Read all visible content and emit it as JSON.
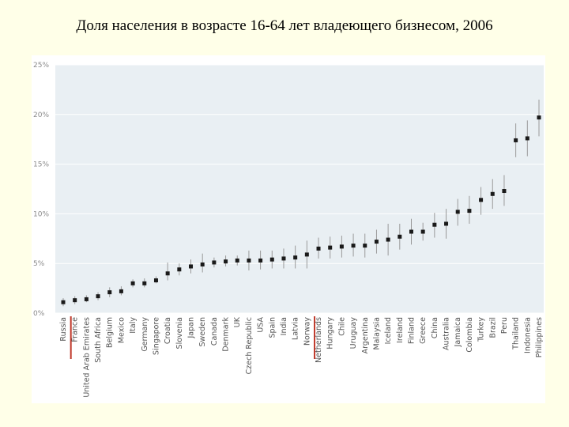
{
  "title": "Доля населения в возрасте 16-64 лет владеющего бизнесом, 2006",
  "colors": {
    "plot_bg": "#e9eff3",
    "grid": "#ffffff",
    "marker": "#1a1a1a",
    "error_bar": "#999999",
    "highlight": "#c0392b"
  },
  "chart_data": {
    "type": "scatter",
    "yticks": [
      "0%",
      "5%",
      "10%",
      "15%",
      "20%",
      "25%"
    ],
    "ylim": [
      0,
      25
    ],
    "grid": true,
    "highlight_categories": [
      "France",
      "Netherlands"
    ],
    "categories": [
      "Russia",
      "France",
      "United Arab Emirates",
      "South Africa",
      "Belgium",
      "Mexico",
      "Italy",
      "Germany",
      "Singapore",
      "Croatia",
      "Slovenia",
      "Japan",
      "Sweden",
      "Canada",
      "Denmark",
      "UK",
      "Czech Republic",
      "USA",
      "Spain",
      "India",
      "Latvia",
      "Norway",
      "Netherlands",
      "Hungary",
      "Chile",
      "Uruguay",
      "Argentina",
      "Malaysia",
      "Iceland",
      "Ireland",
      "Finland",
      "Greece",
      "China",
      "Australia",
      "Jamaica",
      "Colombia",
      "Turkey",
      "Brazil",
      "Peru",
      "Thailand",
      "Indonesia",
      "Philippines"
    ],
    "values": [
      1.1,
      1.3,
      1.4,
      1.7,
      2.1,
      2.2,
      3.0,
      3.0,
      3.3,
      4.0,
      4.4,
      4.7,
      4.9,
      5.1,
      5.2,
      5.3,
      5.3,
      5.3,
      5.4,
      5.5,
      5.6,
      5.9,
      6.5,
      6.6,
      6.7,
      6.8,
      6.8,
      7.2,
      7.4,
      7.7,
      8.2,
      8.2,
      8.9,
      9.0,
      10.2,
      10.3,
      11.4,
      12.0,
      12.3,
      17.4,
      17.6,
      19.7
    ],
    "error_low": [
      0.7,
      0.9,
      1.1,
      1.3,
      1.6,
      1.8,
      2.6,
      2.6,
      3.0,
      3.3,
      3.8,
      4.0,
      4.1,
      4.6,
      4.7,
      4.8,
      4.3,
      4.4,
      4.5,
      4.5,
      4.5,
      4.5,
      5.5,
      5.5,
      5.6,
      5.7,
      5.6,
      6.0,
      5.8,
      6.4,
      6.9,
      7.3,
      7.6,
      7.5,
      8.8,
      9.0,
      9.9,
      10.5,
      10.8,
      15.7,
      15.8,
      17.8
    ],
    "error_high": [
      1.5,
      1.7,
      1.8,
      2.1,
      2.6,
      2.7,
      3.4,
      3.5,
      3.7,
      5.1,
      5.0,
      5.4,
      6.0,
      5.6,
      5.8,
      5.8,
      6.3,
      6.3,
      6.3,
      6.5,
      6.8,
      7.3,
      7.6,
      7.7,
      7.8,
      8.0,
      8.0,
      8.4,
      9.0,
      9.0,
      9.5,
      9.1,
      10.1,
      10.5,
      11.5,
      11.8,
      12.7,
      13.5,
      13.9,
      19.1,
      19.4,
      21.5
    ]
  }
}
